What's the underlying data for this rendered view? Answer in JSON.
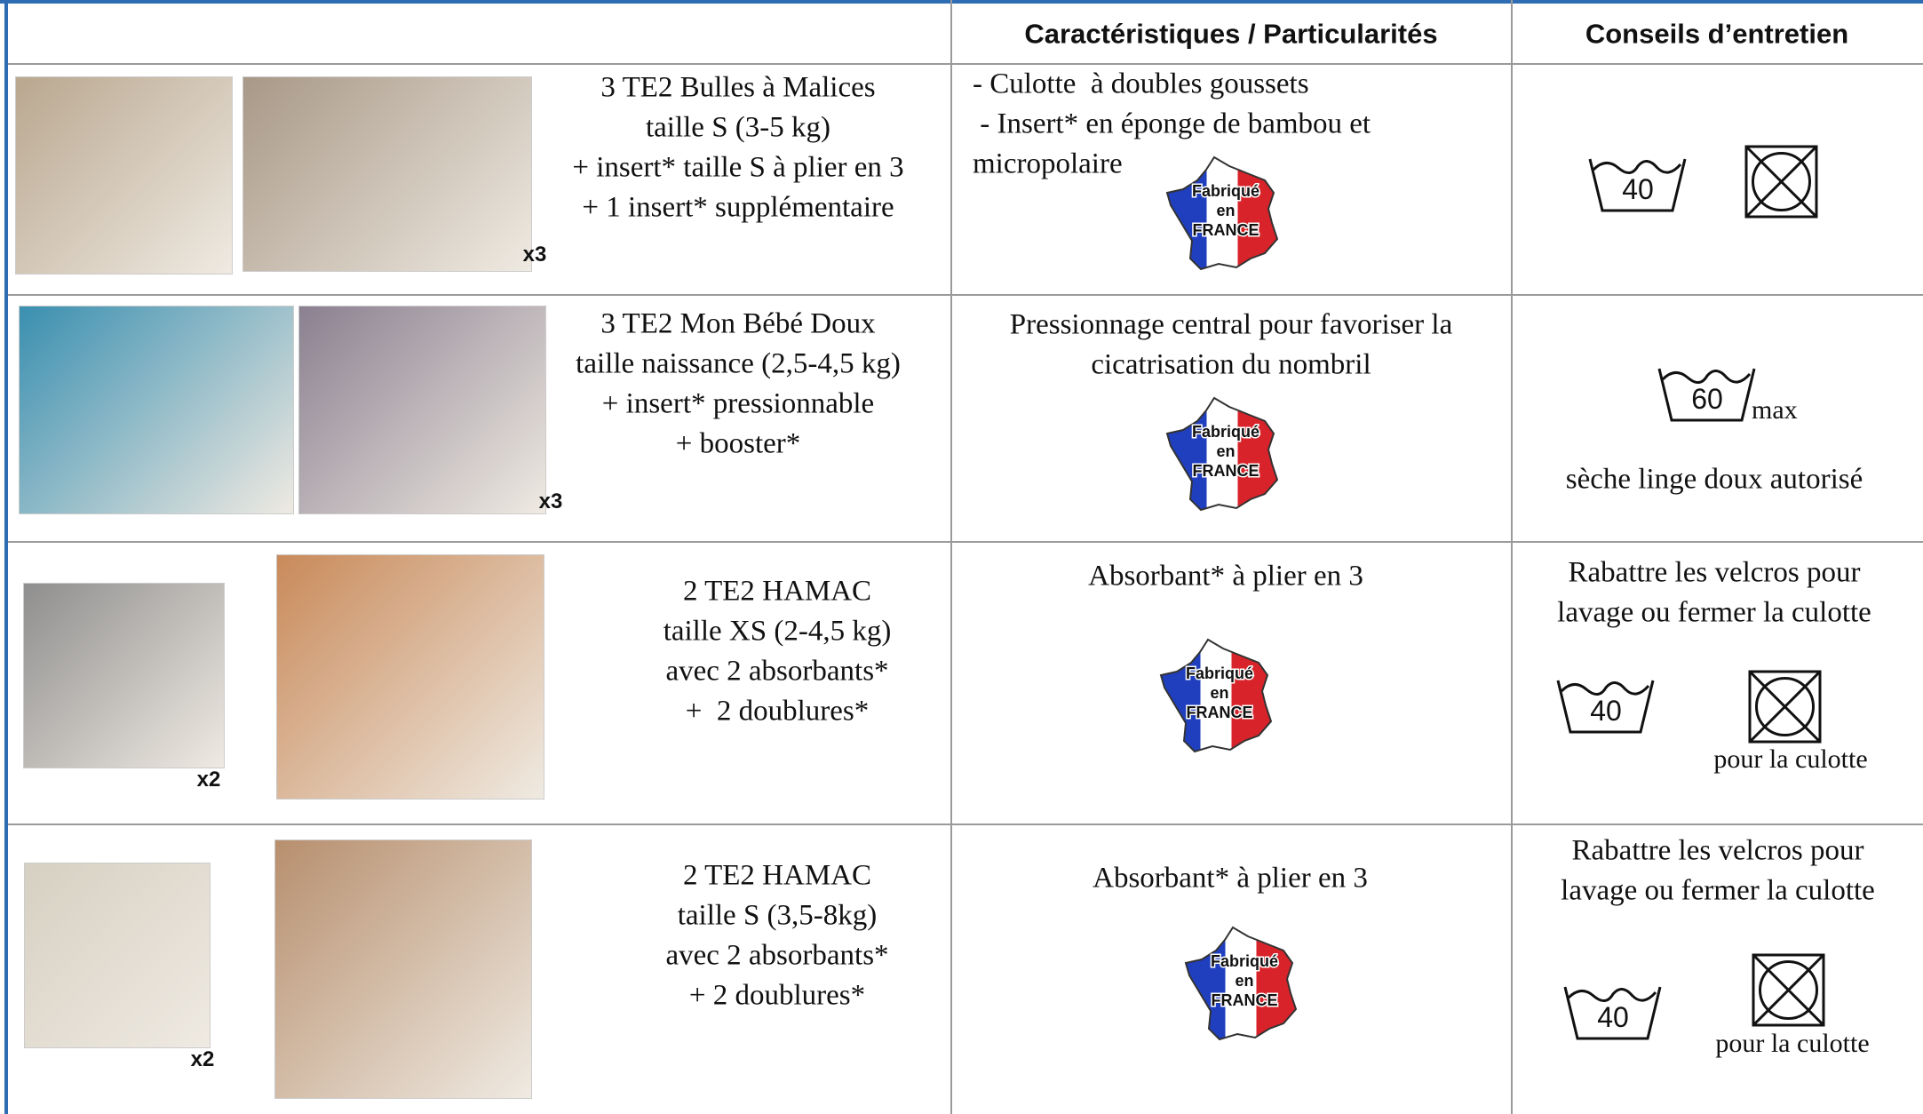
{
  "table": {
    "headers": [
      "Caractéristiques / Particularités",
      "Conseils d’entretien"
    ],
    "badge": [
      "Fabriqué",
      "en",
      "FRANCE"
    ],
    "rows": [
      {
        "product": [
          "3 TE2 Bulles à Malices",
          "taille S (3-5 kg)",
          "+ insert* taille S à plier en 3",
          "+ 1 insert* supplémentaire"
        ],
        "quantity": "x3",
        "features": [
          "- Culotte  à doubles goussets",
          " - Insert* en éponge de bambou et",
          "micropolaire"
        ],
        "care": {
          "wash": "40"
        }
      },
      {
        "product": [
          "3 TE2 Mon Bébé Doux",
          "taille naissance (2,5-4,5 kg)",
          "+ insert* pressionnable",
          "+ booster*"
        ],
        "quantity": "x3",
        "features": [
          "Pressionnage central pour favoriser la",
          "cicatrisation du nombril"
        ],
        "care": {
          "wash": "60",
          "wash_suffix": "max",
          "note": "sèche linge doux autorisé"
        }
      },
      {
        "product": [
          "2 TE2 HAMAC",
          "taille XS (2-4,5 kg)",
          "avec 2 absorbants*",
          "+  2 doublures*"
        ],
        "quantity": "x2",
        "features": [
          "Absorbant* à plier en 3"
        ],
        "care": {
          "instructions": [
            "Rabattre les velcros pour",
            "lavage ou fermer la culotte"
          ],
          "wash": "40",
          "dryer_note": "pour la culotte"
        }
      },
      {
        "product": [
          "2 TE2 HAMAC",
          "taille S (3,5-8kg)",
          "avec 2 absorbants*",
          "+ 2 doublures*"
        ],
        "quantity": "x2",
        "features": [
          "Absorbant* à plier en 3"
        ],
        "care": {
          "instructions": [
            "Rabattre les velcros pour",
            "lavage ou fermer la culotte"
          ],
          "wash": "40",
          "dryer_note": "pour la culotte"
        }
      }
    ]
  }
}
